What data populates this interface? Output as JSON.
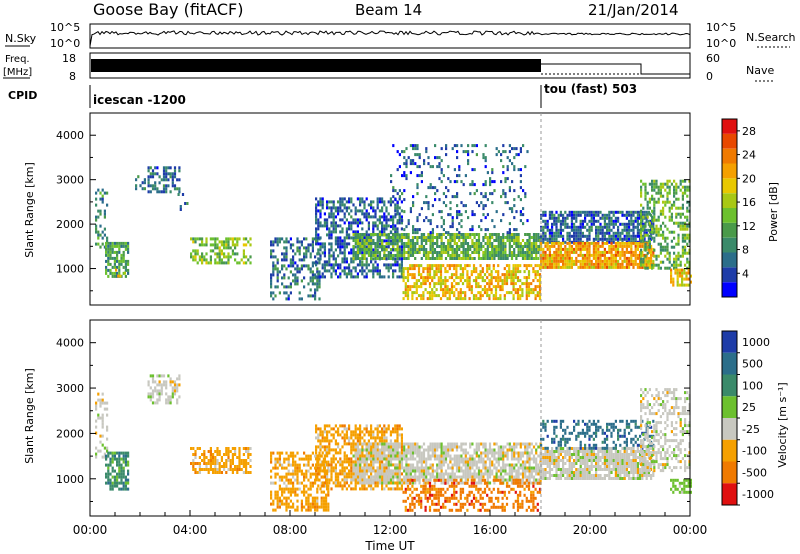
{
  "header": {
    "site": "Goose Bay (fitACF)",
    "beam": "Beam 14",
    "date": "21/Jan/2014"
  },
  "noise_panel": {
    "left_label": "N.Sky",
    "right_label": "N.Search",
    "left_ticks": [
      "10^5",
      "10^0"
    ],
    "right_ticks": [
      "10^5",
      "10^0"
    ]
  },
  "freq_panel": {
    "left_label_1": "Freq.",
    "left_label_2": "[MHz]",
    "right_label": "Nave",
    "left_ticks": [
      "18",
      "8"
    ],
    "right_ticks": [
      "60",
      "0"
    ]
  },
  "cpid_panel": {
    "label": "CPID",
    "modes": [
      {
        "name": "icescan -1200",
        "start": "00:00",
        "end": "18:00"
      },
      {
        "name": "tou (fast) 503",
        "start": "18:00",
        "end": "00:00"
      }
    ]
  },
  "chart_data": [
    {
      "type": "heatmap",
      "title": "Power",
      "xlabel": "",
      "ylabel": "Slant Range [km]",
      "xlim": [
        0,
        24
      ],
      "ylim": [
        180,
        4500
      ],
      "y_ticks": [
        "1000",
        "2000",
        "3000",
        "4000"
      ],
      "colorbar": {
        "label": "Power [dB]",
        "ticks": [
          "4",
          "8",
          "12",
          "16",
          "20",
          "24",
          "28"
        ],
        "range": [
          0,
          30
        ],
        "colors": [
          "#0000ff",
          "#1e3ca8",
          "#2b6e8a",
          "#3a8a6a",
          "#4a9a4a",
          "#6cc02e",
          "#a8c814",
          "#e8c800",
          "#f5a000",
          "#f07a00",
          "#e84800",
          "#e01010"
        ]
      },
      "echo_regions": [
        {
          "t0": 0.2,
          "t1": 0.7,
          "r0": 1500,
          "r1": 2800,
          "level": 8,
          "density": 0.35
        },
        {
          "t0": 0.6,
          "t1": 1.5,
          "r0": 800,
          "r1": 1600,
          "level": 10,
          "density": 0.75
        },
        {
          "t0": 1.0,
          "t1": 1.4,
          "r0": 800,
          "r1": 1000,
          "level": 18,
          "density": 0.5
        },
        {
          "t0": 1.8,
          "t1": 2.2,
          "r0": 2800,
          "r1": 3100,
          "level": 8,
          "density": 0.3
        },
        {
          "t0": 2.3,
          "t1": 3.6,
          "r0": 2700,
          "r1": 3300,
          "level": 6,
          "density": 0.55
        },
        {
          "t0": 3.5,
          "t1": 3.9,
          "r0": 2300,
          "r1": 2700,
          "level": 6,
          "density": 0.25
        },
        {
          "t0": 4.0,
          "t1": 6.4,
          "r0": 1150,
          "r1": 1700,
          "level": 14,
          "density": 0.55
        },
        {
          "t0": 7.2,
          "t1": 9.2,
          "r0": 300,
          "r1": 1700,
          "level": 6,
          "density": 0.4
        },
        {
          "t0": 9.0,
          "t1": 12.5,
          "r0": 800,
          "r1": 2600,
          "level": 5,
          "density": 0.55
        },
        {
          "t0": 10.5,
          "t1": 18.0,
          "r0": 1200,
          "r1": 1800,
          "level": 12,
          "density": 0.75
        },
        {
          "t0": 12.5,
          "t1": 18.0,
          "r0": 300,
          "r1": 1100,
          "level": 20,
          "density": 0.6
        },
        {
          "t0": 12.0,
          "t1": 17.5,
          "r0": 1800,
          "r1": 3800,
          "level": 5,
          "density": 0.18
        },
        {
          "t0": 18.0,
          "t1": 22.5,
          "r0": 1600,
          "r1": 2300,
          "level": 5,
          "density": 0.75
        },
        {
          "t0": 18.0,
          "t1": 22.5,
          "r0": 1000,
          "r1": 1600,
          "level": 22,
          "density": 0.85
        },
        {
          "t0": 22.0,
          "t1": 24.0,
          "r0": 1000,
          "r1": 3000,
          "level": 12,
          "density": 0.5
        },
        {
          "t0": 23.2,
          "t1": 24.0,
          "r0": 600,
          "r1": 1000,
          "level": 20,
          "density": 0.6
        }
      ]
    },
    {
      "type": "heatmap",
      "title": "Velocity",
      "xlabel": "Time UT",
      "ylabel": "Slant Range [km]",
      "xlim": [
        0,
        24
      ],
      "ylim": [
        180,
        4500
      ],
      "x_ticks": [
        "00:00",
        "04:00",
        "08:00",
        "12:00",
        "16:00",
        "20:00",
        "00:00"
      ],
      "y_ticks": [
        "1000",
        "2000",
        "3000",
        "4000"
      ],
      "colorbar": {
        "label": "Velocity [m s⁻¹]",
        "ticks": [
          "1000",
          "500",
          "100",
          "25",
          "-25",
          "-100",
          "-500",
          "-1000"
        ],
        "colors": [
          "#1e3ca8",
          "#2b6e8a",
          "#3a8a6a",
          "#6cc02e",
          "#c8c8c0",
          "#f5a000",
          "#f07a00",
          "#e01010"
        ]
      },
      "echo_regions": [
        {
          "t0": 0.2,
          "t1": 0.7,
          "r0": 1500,
          "r1": 2900,
          "class": 4,
          "density": 0.35
        },
        {
          "t0": 0.6,
          "t1": 1.5,
          "r0": 800,
          "r1": 1600,
          "class": 2,
          "density": 0.7
        },
        {
          "t0": 2.3,
          "t1": 3.6,
          "r0": 2700,
          "r1": 3300,
          "class": 4,
          "density": 0.55
        },
        {
          "t0": 4.0,
          "t1": 6.4,
          "r0": 1150,
          "r1": 1700,
          "class": 5,
          "density": 0.55
        },
        {
          "t0": 7.2,
          "t1": 9.5,
          "r0": 300,
          "r1": 1600,
          "class": 5,
          "density": 0.55
        },
        {
          "t0": 9.0,
          "t1": 12.5,
          "r0": 800,
          "r1": 2200,
          "class": 5,
          "density": 0.6
        },
        {
          "t0": 10.5,
          "t1": 18.0,
          "r0": 900,
          "r1": 1800,
          "class": 4,
          "density": 0.75
        },
        {
          "t0": 12.5,
          "t1": 18.0,
          "r0": 300,
          "r1": 1000,
          "class": 6,
          "density": 0.45
        },
        {
          "t0": 18.0,
          "t1": 22.5,
          "r0": 1000,
          "r1": 1700,
          "class": 4,
          "density": 0.85
        },
        {
          "t0": 18.0,
          "t1": 22.5,
          "r0": 1700,
          "r1": 2300,
          "class": 1,
          "density": 0.35
        },
        {
          "t0": 22.0,
          "t1": 24.0,
          "r0": 1200,
          "r1": 3000,
          "class": 4,
          "density": 0.45
        },
        {
          "t0": 23.2,
          "t1": 24.0,
          "r0": 700,
          "r1": 1000,
          "class": 3,
          "density": 0.7
        }
      ]
    }
  ]
}
